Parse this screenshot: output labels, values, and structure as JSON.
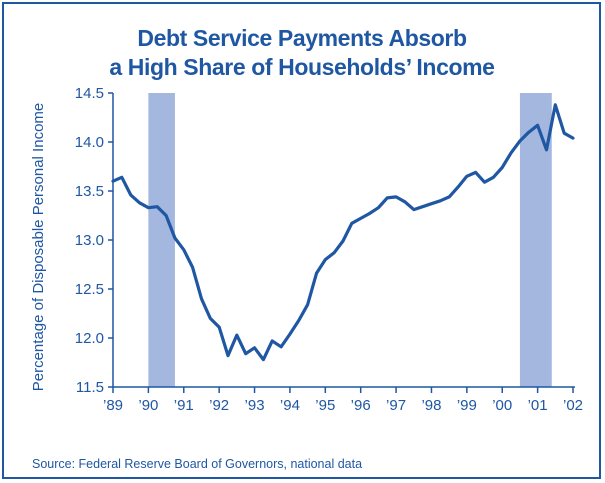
{
  "chart_data": {
    "type": "line",
    "title_lines": [
      "Debt Service Payments Absorb",
      "a High Share of Households’ Income"
    ],
    "ylabel": "Percentage of Disposable Personal Income",
    "source": "Source: Federal Reserve Board of Governors, national data",
    "ylim": [
      11.5,
      14.5
    ],
    "xlim": [
      1989,
      2002
    ],
    "y_ticks": [
      11.5,
      12.0,
      12.5,
      13.0,
      13.5,
      14.0,
      14.5
    ],
    "y_tick_labels": [
      "11.5",
      "12.0",
      "12.5",
      "13.0",
      "13.5",
      "14.0",
      "14.5"
    ],
    "x_ticks": [
      1989,
      1990,
      1991,
      1992,
      1993,
      1994,
      1995,
      1996,
      1997,
      1998,
      1999,
      2000,
      2001,
      2002
    ],
    "x_tick_labels": [
      "’89",
      "’90",
      "’91",
      "’92",
      "’93",
      "’94",
      "’95",
      "’96",
      "’97",
      "’98",
      "’99",
      "’00",
      "’01",
      "’02"
    ],
    "recessions": [
      {
        "start": 1990.0,
        "end": 1990.75
      },
      {
        "start": 2000.5,
        "end": 2001.4
      }
    ],
    "colors": {
      "line": "#1f57a3",
      "recession": "#a3b7df",
      "text": "#1f57a3"
    },
    "grid": false,
    "series": [
      {
        "x": [
          1989.0,
          1989.25,
          1989.5,
          1989.75,
          1990.0,
          1990.25,
          1990.5,
          1990.75,
          1991.0,
          1991.25,
          1991.5,
          1991.75,
          1992.0,
          1992.25,
          1992.5,
          1992.75,
          1993.0,
          1993.25,
          1993.5,
          1993.75,
          1994.0,
          1994.25,
          1994.5,
          1994.75,
          1995.0,
          1995.25,
          1995.5,
          1995.75,
          1996.0,
          1996.25,
          1996.5,
          1996.75,
          1997.0,
          1997.25,
          1997.5,
          1997.75,
          1998.0,
          1998.25,
          1998.5,
          1998.75,
          1999.0,
          1999.25,
          1999.5,
          1999.75,
          2000.0,
          2000.25,
          2000.5,
          2000.75,
          2001.0,
          2001.25,
          2001.5,
          2001.75,
          2002.0
        ],
        "y": [
          13.6,
          13.64,
          13.46,
          13.38,
          13.33,
          13.34,
          13.25,
          13.02,
          12.9,
          12.72,
          12.4,
          12.2,
          12.11,
          11.82,
          12.03,
          11.84,
          11.9,
          11.78,
          11.97,
          11.91,
          12.04,
          12.18,
          12.34,
          12.66,
          12.8,
          12.87,
          12.99,
          13.17,
          13.22,
          13.27,
          13.33,
          13.43,
          13.44,
          13.39,
          13.31,
          13.34,
          13.37,
          13.4,
          13.44,
          13.54,
          13.65,
          13.69,
          13.59,
          13.64,
          13.74,
          13.89,
          14.01,
          14.1,
          14.17,
          13.92,
          14.38,
          14.09,
          14.04
        ]
      }
    ]
  }
}
